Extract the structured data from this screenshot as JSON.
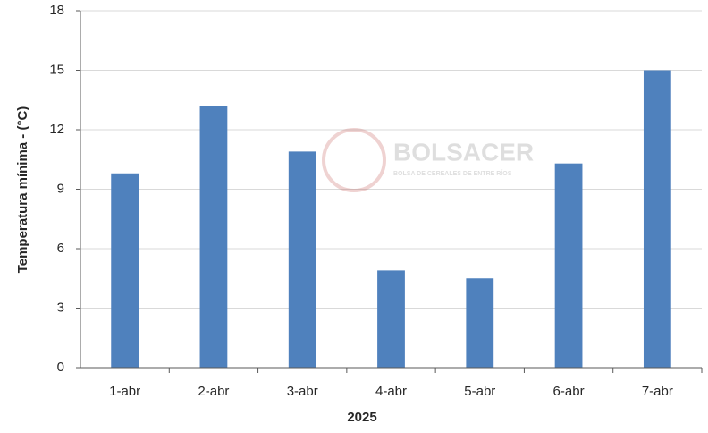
{
  "chart_data": {
    "type": "bar",
    "x_label": "2025",
    "y_label": "Temperatura mínima - (°C)",
    "categories": [
      "1-abr",
      "2-abr",
      "3-abr",
      "4-abr",
      "5-abr",
      "6-abr",
      "7-abr"
    ],
    "values": [
      9.8,
      13.2,
      10.9,
      4.9,
      4.5,
      10.3,
      15.0
    ],
    "color": "#4f81bd",
    "ylim": [
      0,
      18
    ],
    "yticks": [
      0,
      3,
      6,
      9,
      12,
      15,
      18
    ],
    "grid": true,
    "watermark": {
      "title": "BOLSACER",
      "subtitle": "BOLSA DE CEREALES DE ENTRE RÍOS"
    }
  }
}
